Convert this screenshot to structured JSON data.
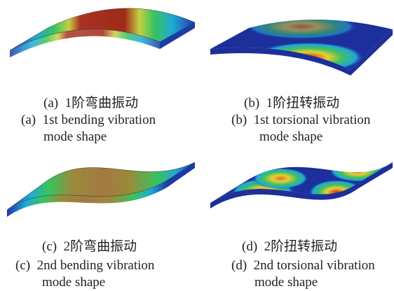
{
  "panels": [
    {
      "caption_cn": "(a)  1阶弯曲振动",
      "caption_en": [
        "(a)  1st bending vibration",
        "mode shape"
      ]
    },
    {
      "caption_cn": "(b)  1阶扭转振动",
      "caption_en": [
        "(b)  1st torsional vibration",
        "mode shape"
      ]
    },
    {
      "caption_cn": "(c)  2阶弯曲振动",
      "caption_en": [
        "(c)  2nd bending vibration",
        "mode shape"
      ]
    },
    {
      "caption_cn": "(d)  2阶扭转振动",
      "caption_en": [
        "(d)  2nd torsional vibration",
        "mode shape"
      ]
    }
  ]
}
